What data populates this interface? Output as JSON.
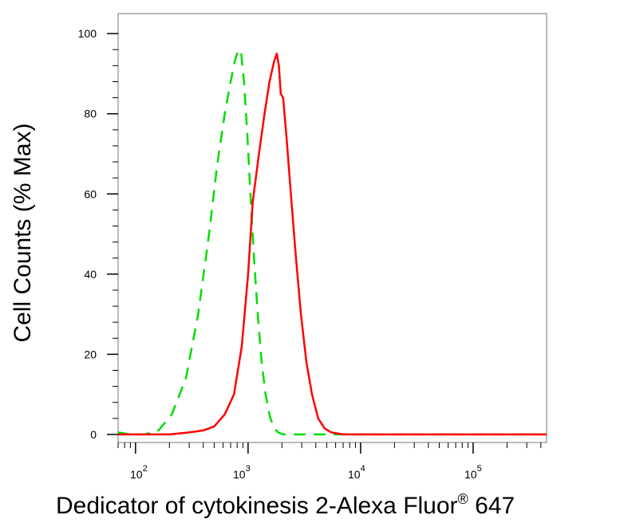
{
  "chart_data": {
    "type": "line",
    "title": "",
    "xlabel": "Dedicator of cytokinesis 2-Alexa Fluor",
    "xlabel_superscript": "®",
    "xlabel_suffix": " 647",
    "ylabel": "Cell Counts (% Max)",
    "x_scale": "log",
    "xlim": [
      70,
      450000
    ],
    "ylim": [
      -2,
      105
    ],
    "yticks": [
      0,
      20,
      40,
      60,
      80,
      100
    ],
    "ytick_labels": [
      "0",
      "20",
      "40",
      "60",
      "80",
      "100"
    ],
    "xticks": [
      100,
      1000,
      10000,
      100000
    ],
    "xtick_bases": [
      "10",
      "10",
      "10",
      "10"
    ],
    "xtick_exponents": [
      "2",
      "3",
      "4",
      "5"
    ],
    "grid": false,
    "legend": "none",
    "series": [
      {
        "color": "#00dd00",
        "style": "dashed",
        "x": [
          70,
          90,
          120,
          160,
          210,
          280,
          360,
          450,
          530,
          620,
          700,
          760,
          820,
          870,
          920,
          980,
          1050,
          1130,
          1220,
          1320,
          1430,
          1560,
          1700,
          1850,
          2050,
          2400,
          3000,
          5000,
          10000,
          50000,
          450000
        ],
        "y": [
          0.5,
          0,
          0,
          1,
          5,
          14,
          30,
          50,
          67,
          80,
          88,
          93,
          96,
          95,
          88,
          76,
          60,
          44,
          30,
          18,
          10,
          4.5,
          1.5,
          0.5,
          0,
          0,
          0,
          0,
          0,
          0,
          0
        ]
      },
      {
        "color": "#ff0000",
        "style": "solid",
        "x": [
          70,
          200,
          300,
          400,
          500,
          620,
          750,
          880,
          1000,
          1100,
          1250,
          1400,
          1550,
          1700,
          1800,
          1880,
          1950,
          2050,
          2200,
          2400,
          2650,
          2950,
          3300,
          3700,
          4200,
          4800,
          5500,
          7000,
          20000,
          100000,
          450000
        ],
        "y": [
          0,
          0,
          0.5,
          1,
          2,
          5,
          10,
          22,
          40,
          58,
          70,
          80,
          88,
          93,
          95,
          92,
          85,
          84,
          74,
          60,
          45,
          30,
          18,
          10,
          4,
          1.5,
          0.5,
          0,
          0,
          0,
          0
        ]
      }
    ]
  }
}
